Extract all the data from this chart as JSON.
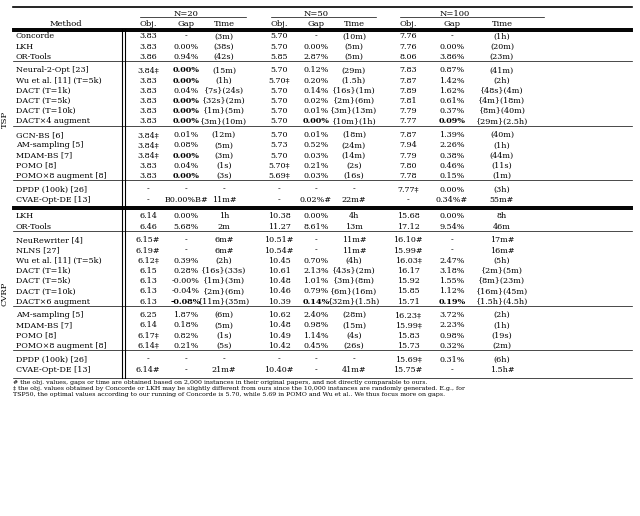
{
  "footnote1": "# the obj. values, gaps or time are obtained based on 2,000 instances in their original papers, and not directly comparable to ours.",
  "footnote2": "‡ the obj. values obtained by Concorde or LKH may be slightly different from ours since the 10,000 instances are randomly generated. E.g., for",
  "footnote3": "TSP50, the optimal values according to our running of Concorde is 5.70, while 5.69 in POMO and Wu et al.. We thus focus more on gaps.",
  "tsp_sections": [
    [
      [
        "Concorde",
        "3.83",
        "-",
        "(3m)",
        "5.70",
        "-",
        "(10m)",
        "7.76",
        "-",
        "(1h)"
      ],
      [
        "LKH",
        "3.83",
        "0.00%",
        "(38s)",
        "5.70",
        "0.00%",
        "(5m)",
        "7.76",
        "0.00%",
        "(20m)"
      ],
      [
        "OR-Tools",
        "3.86",
        "0.94%",
        "(42s)",
        "5.85",
        "2.87%",
        "(5m)",
        "8.06",
        "3.86%",
        "(23m)"
      ]
    ],
    [
      [
        "Neural-2-Opt [23]",
        "3.84‡",
        "B0.00%B",
        "(15m)",
        "5.70",
        "0.12%",
        "(29m)",
        "7.83",
        "0.87%",
        "(41m)"
      ],
      [
        "Wu et al. [11] (T=5k)",
        "3.83",
        "B0.00%B",
        "(1h)",
        "5.70‡",
        "0.20%",
        "(1.5h)",
        "7.87",
        "1.42%",
        "(2h)"
      ],
      [
        "DACT (T=1k)",
        "3.83",
        "0.04%",
        "{7s}(24s)",
        "5.70",
        "0.14%",
        "{16s}(1m)",
        "7.89",
        "1.62%",
        "{48s}(4m)"
      ],
      [
        "DACT (T=5k)",
        "3.83",
        "B0.00%B",
        "{32s}(2m)",
        "5.70",
        "0.02%",
        "{2m}(6m)",
        "7.81",
        "0.61%",
        "{4m}(18m)"
      ],
      [
        "DACT (T=10k)",
        "3.83",
        "B0.00%B",
        "{1m}(5m)",
        "5.70",
        "0.01%",
        "{3m}(13m)",
        "7.79",
        "0.37%",
        "{8m}(40m)"
      ],
      [
        "DACT×4 augment",
        "3.83",
        "B0.00%B",
        "{3m}(10m)",
        "5.70",
        "B0.00%B",
        "{10m}(1h)",
        "7.77",
        "B0.09%B",
        "{29m}(2.5h)"
      ]
    ],
    [
      [
        "GCN-BS [6]",
        "3.84‡",
        "0.01%",
        "(12m)",
        "5.70",
        "0.01%",
        "(18m)",
        "7.87",
        "1.39%",
        "(40m)"
      ],
      [
        "AM-sampling [5]",
        "3.84‡",
        "0.08%",
        "(5m)",
        "5.73",
        "0.52%",
        "(24m)",
        "7.94",
        "2.26%",
        "(1h)"
      ],
      [
        "MDAM-BS [7]",
        "3.84‡",
        "B0.00%B",
        "(3m)",
        "5.70",
        "0.03%",
        "(14m)",
        "7.79",
        "0.38%",
        "(44m)"
      ],
      [
        "POMO [8]",
        "3.83",
        "0.04%",
        "(1s)",
        "5.70‡",
        "0.21%",
        "(2s)",
        "7.80",
        "0.46%",
        "(11s)"
      ],
      [
        "POMO×8 augment [8]",
        "3.83",
        "B0.00%B",
        "(3s)",
        "5.69‡",
        "0.03%",
        "(16s)",
        "7.78",
        "0.15%",
        "(1m)"
      ]
    ],
    [
      [
        "DPDP (100k) [26]",
        "-",
        "-",
        "-",
        "-",
        "-",
        "-",
        "7.77‡",
        "0.00%",
        "(3h)"
      ],
      [
        "CVAE-Opt-DE [13]",
        "-",
        "B0.00%B#",
        "11m#",
        "-",
        "0.02%#",
        "22m#",
        "-",
        "0.34%#",
        "55m#"
      ]
    ]
  ],
  "cvrp_sections": [
    [
      [
        "LKH",
        "6.14",
        "0.00%",
        "1h",
        "10.38",
        "0.00%",
        "4h",
        "15.68",
        "0.00%",
        "8h"
      ],
      [
        "OR-Tools",
        "6.46",
        "5.68%",
        "2m",
        "11.27",
        "8.61%",
        "13m",
        "17.12",
        "9.54%",
        "46m"
      ]
    ],
    [
      [
        "NeuRewriter [4]",
        "6.15#",
        "-",
        "6m#",
        "10.51#",
        "-",
        "11m#",
        "16.10#",
        "-",
        "17m#"
      ],
      [
        "NLNS [27]",
        "6.19#",
        "-",
        "6m#",
        "10.54#",
        "-",
        "11m#",
        "15.99#",
        "-",
        "16m#"
      ],
      [
        "Wu et al. [11] (T=5k)",
        "6.12‡",
        "0.39%",
        "(2h)",
        "10.45",
        "0.70%",
        "(4h)",
        "16.03‡",
        "2.47%",
        "(5h)"
      ],
      [
        "DACT (T=1k)",
        "6.15",
        "0.28%",
        "{16s}(33s)",
        "10.61",
        "2.13%",
        "{43s}(2m)",
        "16.17",
        "3.18%",
        "{2m}(5m)"
      ],
      [
        "DACT (T=5k)",
        "6.13",
        "-0.00%",
        "{1m}(3m)",
        "10.48",
        "1.01%",
        "{3m}(8m)",
        "15.92",
        "1.55%",
        "{8m}(23m)"
      ],
      [
        "DACT (T=10k)",
        "6.13",
        "-0.04%",
        "{2m}(6m)",
        "10.46",
        "0.79%",
        "{6m}(16m)",
        "15.85",
        "1.12%",
        "{16m}(45m)"
      ],
      [
        "DACT×6 augment",
        "6.13",
        "B-0.08%B",
        "{11m}(35m)",
        "10.39",
        "B0.14%B",
        "{32m}(1.5h)",
        "15.71",
        "B0.19%B",
        "{1.5h}(4.5h)"
      ]
    ],
    [
      [
        "AM-sampling [5]",
        "6.25",
        "1.87%",
        "(6m)",
        "10.62",
        "2.40%",
        "(28m)",
        "16.23‡",
        "3.72%",
        "(2h)"
      ],
      [
        "MDAM-BS [7]",
        "6.14",
        "0.18%",
        "(5m)",
        "10.48",
        "0.98%",
        "(15m)",
        "15.99‡",
        "2.23%",
        "(1h)"
      ],
      [
        "POMO [8]",
        "6.17‡",
        "0.82%",
        "(1s)",
        "10.49",
        "1.14%",
        "(4s)",
        "15.83",
        "0.98%",
        "(19s)"
      ],
      [
        "POMO×8 augment [8]",
        "6.14‡",
        "0.21%",
        "(5s)",
        "10.42",
        "0.45%",
        "(26s)",
        "15.73",
        "0.32%",
        "(2m)"
      ]
    ],
    [
      [
        "DPDP (100k) [26]",
        "-",
        "-",
        "-",
        "-",
        "-",
        "-",
        "15.69‡",
        "0.31%",
        "(6h)"
      ],
      [
        "CVAE-Opt-DE [13]",
        "6.14#",
        "-",
        "21m#",
        "10.40#",
        "-",
        "41m#",
        "15.75#",
        "-",
        "1.5h#"
      ]
    ]
  ]
}
